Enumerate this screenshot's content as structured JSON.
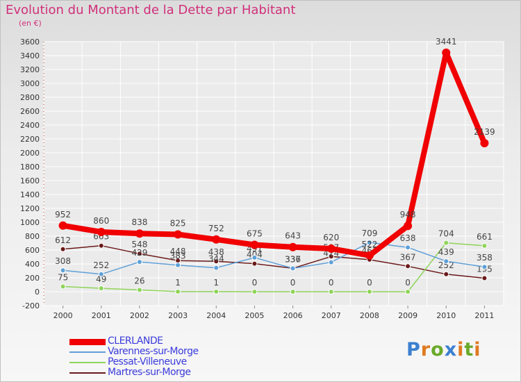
{
  "chart_data": {
    "type": "line",
    "title": "Evolution du Montant de la Dette par Habitant",
    "subtitle": "(en €)",
    "xlabel": "",
    "ylabel": "",
    "ylim": [
      -200,
      3600
    ],
    "yticks": [
      -200,
      0,
      200,
      400,
      600,
      800,
      1000,
      1200,
      1400,
      1600,
      1800,
      2000,
      2200,
      2400,
      2600,
      2800,
      3000,
      3200,
      3400,
      3600
    ],
    "categories": [
      "2000",
      "2001",
      "2002",
      "2003",
      "2004",
      "2005",
      "2006",
      "2007",
      "2008",
      "2009",
      "2010",
      "2011"
    ],
    "series": [
      {
        "name": "Martres-sur-Morge",
        "color": "#6b1a1a",
        "values": [
          612,
          663,
          548,
          448,
          438,
          404,
          337,
          507,
          461,
          367,
          252,
          195
        ],
        "labels": [
          "612",
          "663",
          "548",
          "448",
          "438",
          "404",
          "337",
          "507",
          "461",
          "367",
          "252",
          "195"
        ]
      },
      {
        "name": "Pessat-Villeneuve",
        "color": "#8fd45a",
        "values": [
          75,
          49,
          26,
          1,
          1,
          0,
          0,
          0,
          0,
          0,
          704,
          661
        ],
        "labels": [
          "75",
          "49",
          "26",
          "1",
          "1",
          "0",
          "0",
          "0",
          "0",
          "0",
          "704",
          "661"
        ]
      },
      {
        "name": "Varennes-sur-Morge",
        "color": "#5fa0d8",
        "values": [
          308,
          252,
          429,
          383,
          344,
          491,
          336,
          424,
          709,
          638,
          439,
          358
        ],
        "labels": [
          "308",
          "252",
          "429",
          "383",
          "344",
          "491",
          "336",
          "424",
          "709",
          "638",
          "439",
          "358"
        ]
      },
      {
        "name": "CLERLANDE",
        "color": "#f00000",
        "values": [
          952,
          860,
          838,
          825,
          752,
          675,
          643,
          620,
          522,
          948,
          3441,
          2139
        ],
        "labels": [
          "952",
          "860",
          "838",
          "825",
          "752",
          "675",
          "643",
          "620",
          "522",
          "948",
          "3441",
          "2139"
        ]
      }
    ],
    "legend": {
      "position": "bottom-left",
      "entries": [
        "CLERLANDE",
        "Varennes-sur-Morge",
        "Pessat-Villeneuve",
        "Martres-sur-Morge"
      ]
    }
  },
  "branding": {
    "letters": [
      "P",
      "r",
      "o",
      "x",
      "i",
      "t",
      "i"
    ]
  }
}
